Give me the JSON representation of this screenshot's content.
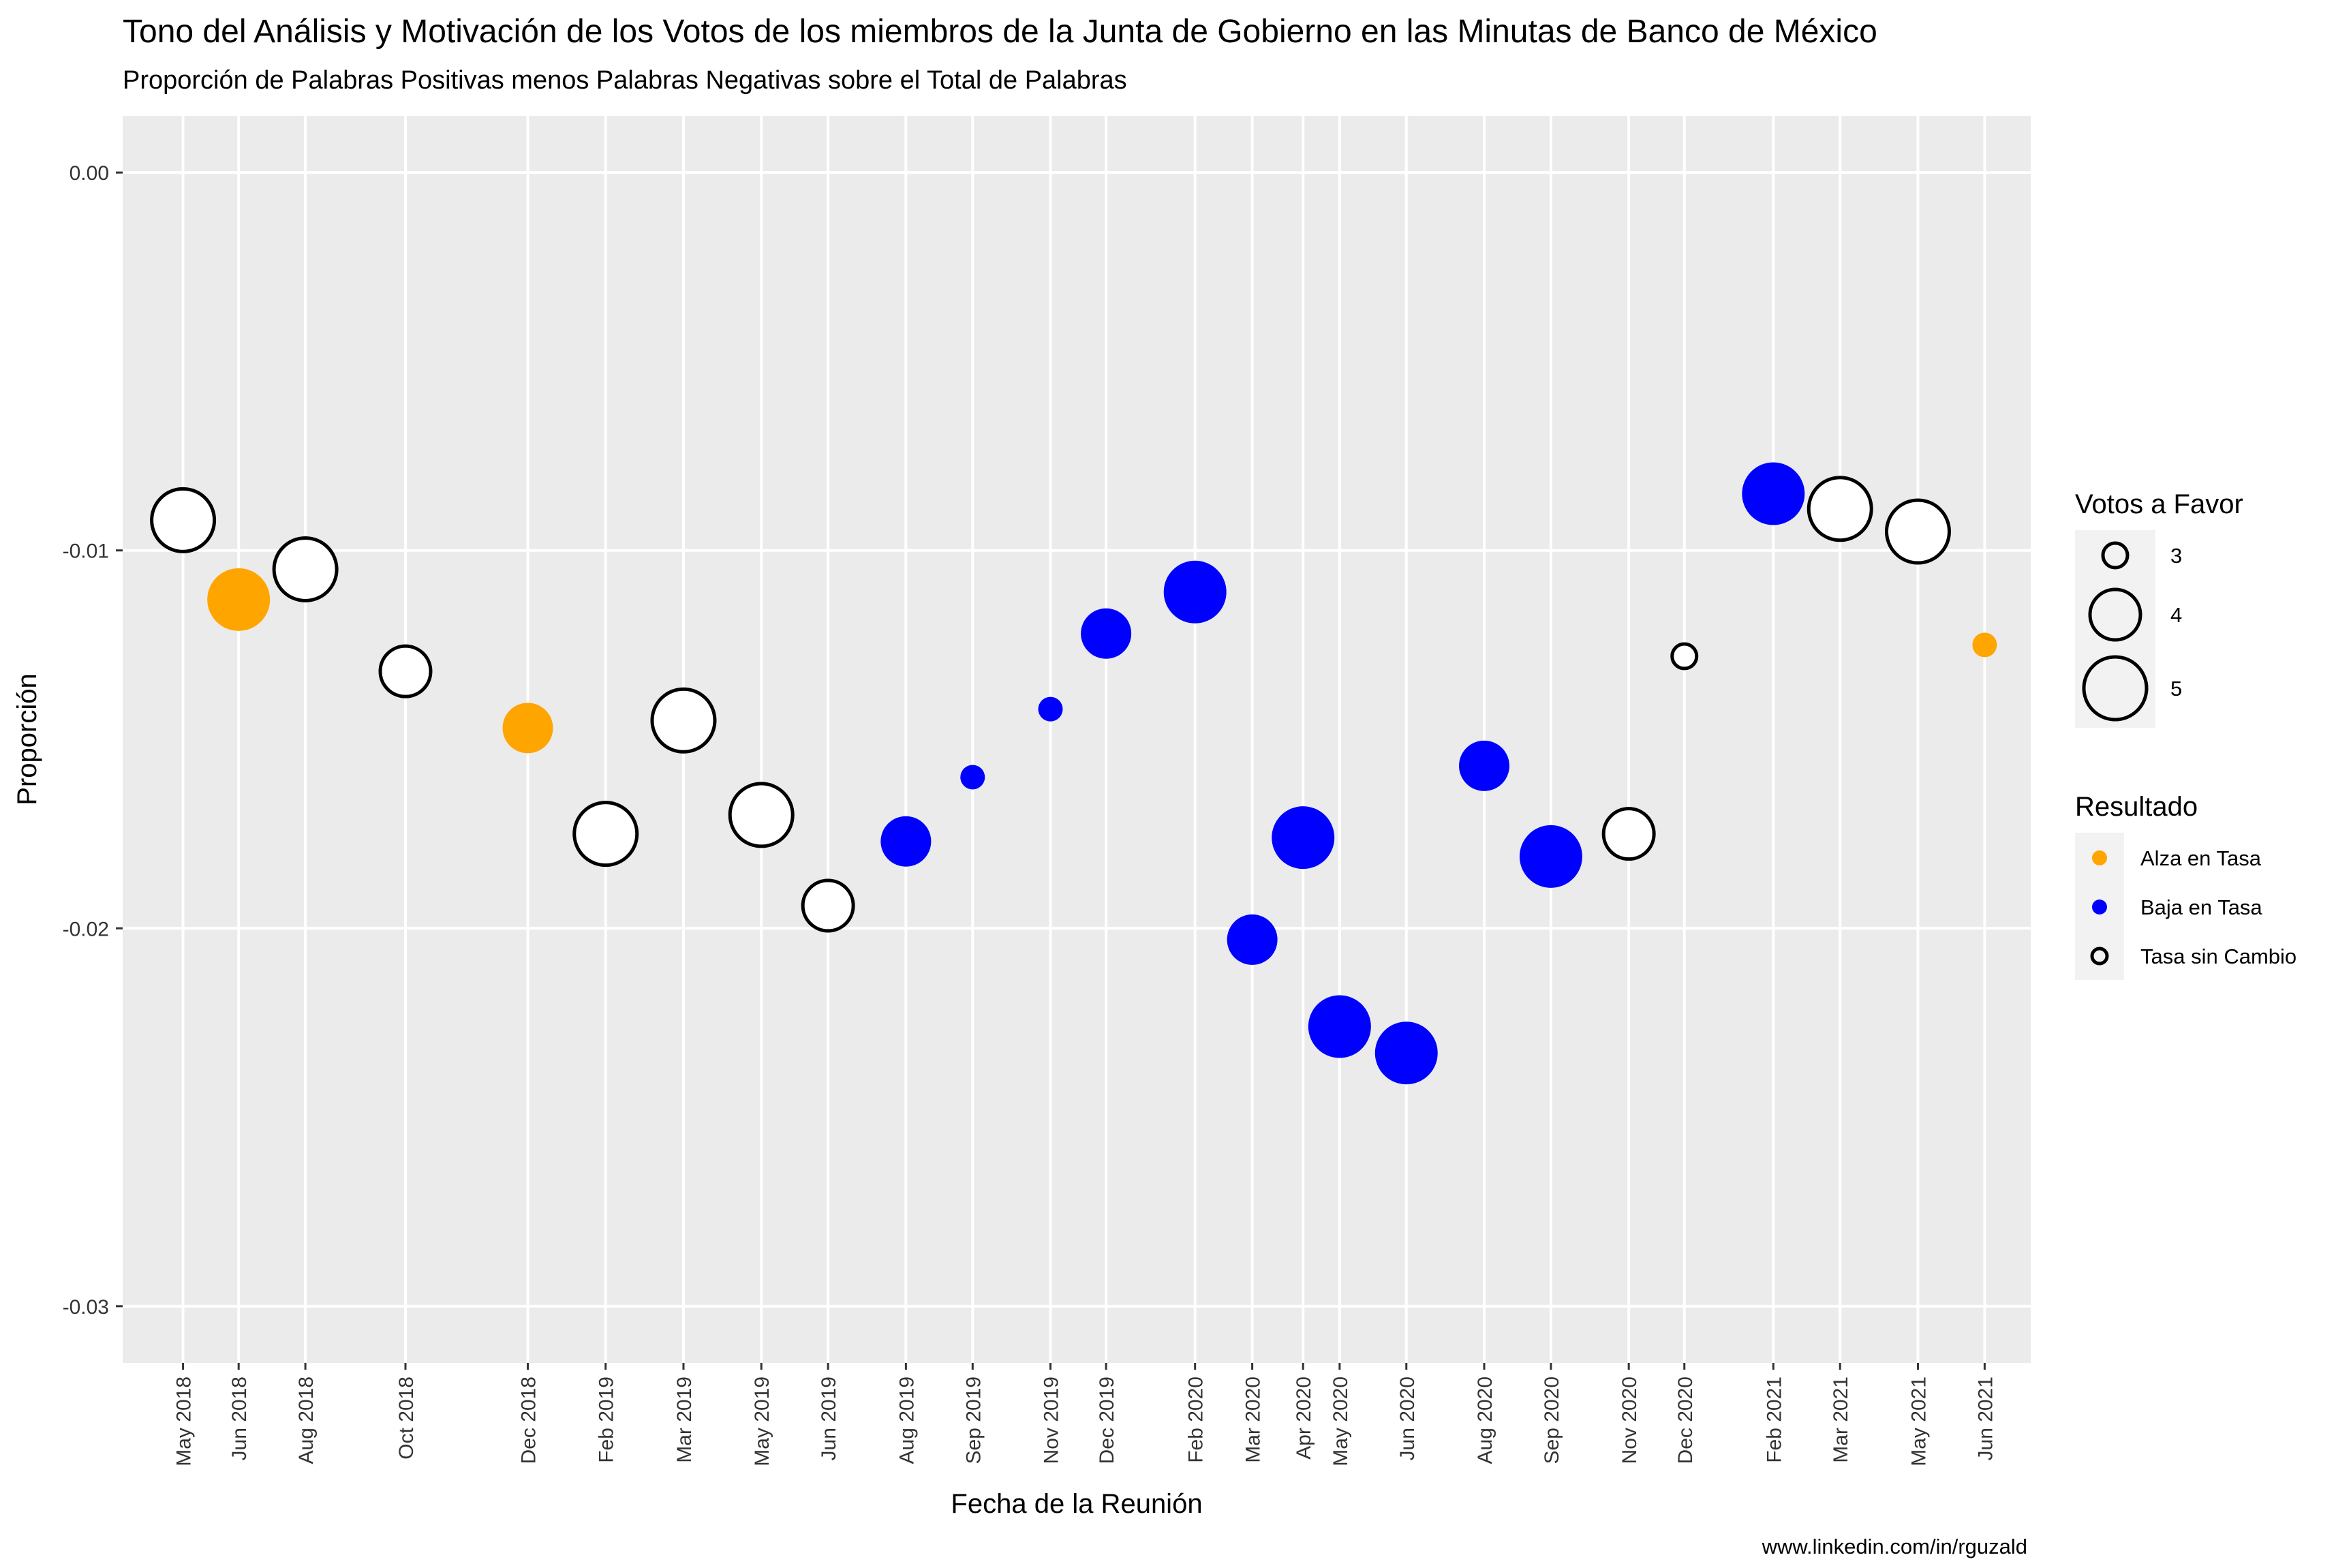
{
  "chart_data": {
    "type": "scatter",
    "title": "Tono del Análisis y Motivación de los Votos de los miembros de la Junta de Gobierno en las Minutas de Banco de México",
    "subtitle": "Proporción de Palabras Positivas menos Palabras Negativas sobre el Total de Palabras",
    "xlabel": "Fecha de la Reunión",
    "ylabel": "Proporción",
    "caption": "www.linkedin.com/in/rguzald",
    "ylim": [
      -0.0315,
      0.0015
    ],
    "xlim": [
      "2018-04-09",
      "2021-07-23"
    ],
    "y_ticks": [
      {
        "value": 0.0,
        "label": "0.00"
      },
      {
        "value": -0.01,
        "label": "-0.01"
      },
      {
        "value": -0.02,
        "label": "-0.02"
      },
      {
        "value": -0.03,
        "label": "-0.03"
      }
    ],
    "grid": true,
    "colors": {
      "panel_bg": "#EBEBEB",
      "grid_line": "#FFFFFF",
      "alza": "#FFA500",
      "baja": "#0000FF",
      "sin_cambio_fill": "#FFFFFF",
      "sin_cambio_stroke": "#000000"
    },
    "points": [
      {
        "date": "2018-05-17",
        "label": "May 2018",
        "y": -0.0092,
        "votes": 5,
        "result": "sin_cambio"
      },
      {
        "date": "2018-06-21",
        "label": "Jun 2018",
        "y": -0.0113,
        "votes": 5,
        "result": "alza"
      },
      {
        "date": "2018-08-02",
        "label": "Aug 2018",
        "y": -0.0105,
        "votes": 5,
        "result": "sin_cambio"
      },
      {
        "date": "2018-10-04",
        "label": "Oct 2018",
        "y": -0.0132,
        "votes": 4,
        "result": "sin_cambio"
      },
      {
        "date": "2018-12-20",
        "label": "Dec 2018",
        "y": -0.0147,
        "votes": 4,
        "result": "alza"
      },
      {
        "date": "2019-02-07",
        "label": "Feb 2019",
        "y": -0.0175,
        "votes": 5,
        "result": "sin_cambio"
      },
      {
        "date": "2019-03-28",
        "label": "Mar 2019",
        "y": -0.0145,
        "votes": 5,
        "result": "sin_cambio"
      },
      {
        "date": "2019-05-16",
        "label": "May 2019",
        "y": -0.017,
        "votes": 5,
        "result": "sin_cambio"
      },
      {
        "date": "2019-06-27",
        "label": "Jun 2019",
        "y": -0.0194,
        "votes": 4,
        "result": "sin_cambio"
      },
      {
        "date": "2019-08-15",
        "label": "Aug 2019",
        "y": -0.0177,
        "votes": 4,
        "result": "baja"
      },
      {
        "date": "2019-09-26",
        "label": "Sep 2019",
        "y": -0.016,
        "votes": 3,
        "result": "baja"
      },
      {
        "date": "2019-11-14",
        "label": "Nov 2019",
        "y": -0.0142,
        "votes": 3,
        "result": "baja"
      },
      {
        "date": "2019-12-19",
        "label": "Dec 2019",
        "y": -0.0122,
        "votes": 4,
        "result": "baja"
      },
      {
        "date": "2020-02-13",
        "label": "Feb 2020",
        "y": -0.0111,
        "votes": 5,
        "result": "baja"
      },
      {
        "date": "2020-03-20",
        "label": "Mar 2020",
        "y": -0.0203,
        "votes": 4,
        "result": "baja"
      },
      {
        "date": "2020-04-21",
        "label": "Apr 2020",
        "y": -0.0176,
        "votes": 5,
        "result": "baja"
      },
      {
        "date": "2020-05-14",
        "label": "May 2020",
        "y": -0.0226,
        "votes": 5,
        "result": "baja"
      },
      {
        "date": "2020-06-25",
        "label": "Jun 2020",
        "y": -0.0233,
        "votes": 5,
        "result": "baja"
      },
      {
        "date": "2020-08-13",
        "label": "Aug 2020",
        "y": -0.0157,
        "votes": 4,
        "result": "baja"
      },
      {
        "date": "2020-09-24",
        "label": "Sep 2020",
        "y": -0.0181,
        "votes": 5,
        "result": "baja"
      },
      {
        "date": "2020-11-12",
        "label": "Nov 2020",
        "y": -0.0175,
        "votes": 4,
        "result": "sin_cambio"
      },
      {
        "date": "2020-12-17",
        "label": "Dec 2020",
        "y": -0.0128,
        "votes": 3,
        "result": "sin_cambio"
      },
      {
        "date": "2021-02-11",
        "label": "Feb 2021",
        "y": -0.0085,
        "votes": 5,
        "result": "baja"
      },
      {
        "date": "2021-03-25",
        "label": "Mar 2021",
        "y": -0.0089,
        "votes": 5,
        "result": "sin_cambio"
      },
      {
        "date": "2021-05-13",
        "label": "May 2021",
        "y": -0.0095,
        "votes": 5,
        "result": "sin_cambio"
      },
      {
        "date": "2021-06-24",
        "label": "Jun 2021",
        "y": -0.0125,
        "votes": 3,
        "result": "alza"
      }
    ],
    "legend_size": {
      "title": "Votos a Favor",
      "placement": "right",
      "items": [
        {
          "votes": 3,
          "label": "3"
        },
        {
          "votes": 4,
          "label": "4"
        },
        {
          "votes": 5,
          "label": "5"
        }
      ]
    },
    "legend_color": {
      "title": "Resultado",
      "placement": "right",
      "items": [
        {
          "key": "alza",
          "label": "Alza en Tasa"
        },
        {
          "key": "baja",
          "label": "Baja en Tasa"
        },
        {
          "key": "sin_cambio",
          "label": "Tasa sin Cambio"
        }
      ]
    }
  }
}
